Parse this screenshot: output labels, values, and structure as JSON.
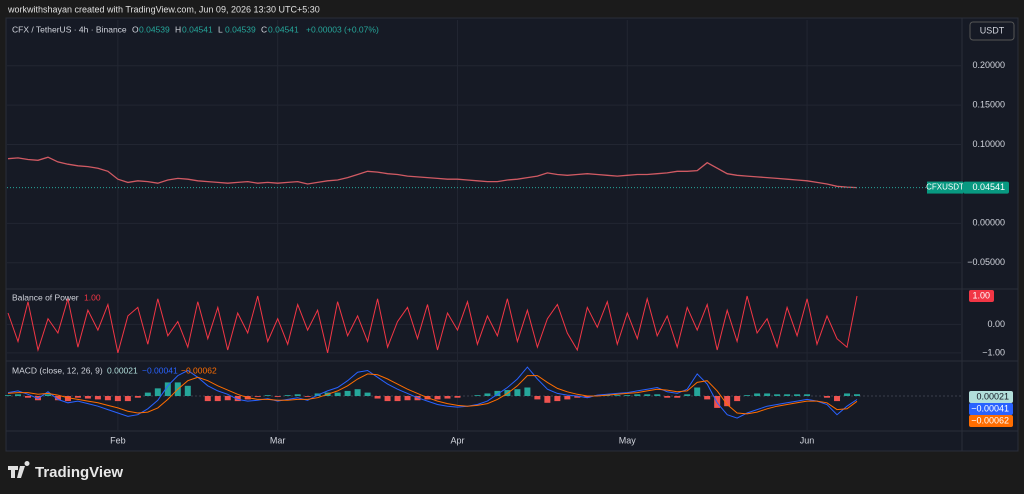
{
  "credit": "workwithshayan created with TradingView.com, Jun 09, 2026 13:30 UTC+5:30",
  "currency_button": "USDT",
  "footer_logo": "TradingView",
  "chart_data": [
    {
      "type": "line",
      "title": "CFX / TetherUS · 4h · Binance",
      "ohlc": [
        {
          "label": "O",
          "value": "0.04539"
        },
        {
          "label": "H",
          "value": "0.04541"
        },
        {
          "label": "L",
          "value": "0.04539"
        },
        {
          "label": "C",
          "value": "0.04541"
        }
      ],
      "change": "+0.00003 (+0.07%)",
      "symbol_label": "CFXUSDT",
      "last_label": "0.04541",
      "color": "#d05a63",
      "categories": [
        null,
        null,
        null,
        null,
        null,
        null,
        null,
        null,
        null,
        null,
        null,
        "Feb",
        null,
        null,
        null,
        null,
        null,
        null,
        null,
        null,
        null,
        null,
        null,
        null,
        null,
        null,
        null,
        "Mar",
        null,
        null,
        null,
        null,
        null,
        null,
        null,
        null,
        null,
        null,
        null,
        null,
        null,
        null,
        null,
        null,
        null,
        "Apr",
        null,
        null,
        null,
        null,
        null,
        null,
        null,
        null,
        null,
        null,
        null,
        null,
        null,
        null,
        null,
        null,
        "May",
        null,
        null,
        null,
        null,
        null,
        null,
        null,
        null,
        null,
        null,
        null,
        null,
        null,
        null,
        null,
        null,
        null,
        "Jun",
        null,
        null,
        null,
        null,
        null
      ],
      "values": [
        0.082,
        0.083,
        0.081,
        0.08,
        0.084,
        0.078,
        0.075,
        0.073,
        0.072,
        0.07,
        0.066,
        0.056,
        0.052,
        0.054,
        0.053,
        0.051,
        0.055,
        0.057,
        0.056,
        0.054,
        0.053,
        0.052,
        0.051,
        0.052,
        0.053,
        0.051,
        0.052,
        0.051,
        0.052,
        0.053,
        0.05,
        0.052,
        0.054,
        0.055,
        0.058,
        0.062,
        0.066,
        0.065,
        0.063,
        0.062,
        0.06,
        0.059,
        0.058,
        0.057,
        0.056,
        0.056,
        0.055,
        0.054,
        0.053,
        0.053,
        0.055,
        0.056,
        0.058,
        0.06,
        0.064,
        0.062,
        0.061,
        0.062,
        0.063,
        0.062,
        0.061,
        0.06,
        0.061,
        0.062,
        0.062,
        0.063,
        0.064,
        0.066,
        0.066,
        0.067,
        0.077,
        0.07,
        0.063,
        0.061,
        0.06,
        0.059,
        0.058,
        0.057,
        0.056,
        0.055,
        0.054,
        0.052,
        0.05,
        0.047,
        0.046,
        0.04541
      ],
      "ylim": [
        -0.082,
        0.258
      ],
      "yticks": [
        {
          "value": 0.2,
          "label": "0.20000"
        },
        {
          "value": 0.15,
          "label": "0.15000"
        },
        {
          "value": 0.1,
          "label": "0.10000"
        },
        {
          "value": 0,
          "label": "0.00000"
        },
        {
          "value": -0.05,
          "label": "−0.05000"
        }
      ],
      "grid": true
    },
    {
      "type": "line",
      "title": "Balance of Power",
      "last_label": "1.00",
      "color": "#f23645",
      "values": [
        0.4,
        -0.6,
        0.8,
        -0.9,
        0.2,
        -0.3,
        0.9,
        -0.8,
        0.5,
        -0.2,
        0.7,
        -1,
        0.3,
        0.6,
        -0.7,
        0.9,
        -0.4,
        0.1,
        -0.8,
        0.8,
        -0.5,
        0.6,
        -0.9,
        0.4,
        -0.3,
        1,
        -0.6,
        0.2,
        -0.7,
        0.7,
        -0.2,
        0.5,
        -1,
        0.8,
        -0.4,
        0.3,
        -0.6,
        0.9,
        -0.8,
        0.1,
        0.6,
        -0.5,
        0.7,
        -0.9,
        0.4,
        -0.2,
        0.8,
        -0.7,
        0.3,
        -0.4,
        0.9,
        -0.6,
        0.5,
        -0.8,
        0.2,
        0.7,
        -0.3,
        -0.9,
        0.6,
        -0.1,
        0.8,
        -0.7,
        0.4,
        -0.5,
        0.9,
        -0.4,
        0.3,
        -0.8,
        0.6,
        -0.2,
        0.7,
        -0.9,
        0.5,
        -0.6,
        1,
        -0.3,
        0.2,
        -0.8,
        0.6,
        -0.4,
        0.9,
        -0.7,
        0.3,
        -0.5,
        -0.8,
        1
      ],
      "ylim": [
        -1.25,
        1.21
      ],
      "yticks": [
        {
          "value": 0,
          "label": "0.00"
        },
        {
          "value": -1,
          "label": "−1.00"
        }
      ],
      "grid": true
    },
    {
      "type": "macd",
      "title": "MACD (close, 12, 26, 9)",
      "histogram": {
        "name": "0.00021",
        "up_color": "#26a69a",
        "down_color": "#ef5350",
        "values": [
          0.0001,
          0.0002,
          -0.0002,
          -0.0005,
          0.0002,
          -0.0005,
          -0.0006,
          -0.0002,
          -0.0003,
          -0.0004,
          -0.0005,
          -0.0006,
          -0.0006,
          -0.0002,
          0.0004,
          0.0009,
          0.0016,
          0.0016,
          0.0012,
          0,
          -0.0006,
          -0.0006,
          -0.0005,
          -0.0006,
          -0.0004,
          -0.0001,
          0.0001,
          -0.0001,
          0.0001,
          0.0002,
          -0.0001,
          0.0003,
          0.0004,
          0.0004,
          0.0006,
          0.0008,
          0.0004,
          -0.0003,
          -0.0006,
          -0.0006,
          -0.0005,
          -0.0005,
          -0.0004,
          -0.0004,
          -0.0003,
          -0.0002,
          0,
          0.0001,
          0.0003,
          0.0006,
          0.0007,
          0.0008,
          0.001,
          -0.0004,
          -0.0008,
          -0.0006,
          -0.0004,
          -0.0002,
          -0.0002,
          0.0001,
          0.0001,
          0.0001,
          0.0001,
          0.0002,
          0.0002,
          0.0002,
          -0.0002,
          -0.0002,
          0.0002,
          0.001,
          -0.0004,
          -0.0014,
          -0.0012,
          -0.0006,
          0.0001,
          0.0003,
          0.0003,
          0.0002,
          0.0002,
          0.0002,
          0.0002,
          0,
          -0.0002,
          -0.0006,
          0.0003,
          0.00021
        ]
      },
      "series": [
        {
          "name": "−0.00041",
          "color": "#2962ff",
          "values": [
            0.0004,
            0.0006,
            0.0002,
            -0.0003,
            0.0005,
            -0.0004,
            -0.0008,
            -0.0006,
            -0.0009,
            -0.0012,
            -0.0016,
            -0.002,
            -0.0024,
            -0.0022,
            -0.0015,
            -0.0005,
            0.0012,
            0.0024,
            0.003,
            0.0022,
            0.0012,
            0.0006,
            0.0002,
            -0.0004,
            -0.0006,
            -0.0005,
            -0.0003,
            -0.0006,
            -0.0004,
            -0.0002,
            -0.0005,
            0.0001,
            0.0006,
            0.001,
            0.0018,
            0.0028,
            0.003,
            0.0022,
            0.0014,
            0.0008,
            0.0003,
            -0.0002,
            -0.0006,
            -0.001,
            -0.0012,
            -0.0013,
            -0.0012,
            -0.001,
            -0.0006,
            0.0002,
            0.001,
            0.002,
            0.0034,
            0.002,
            0.0008,
            0.0003,
            0.0001,
            0.0,
            -0.0002,
            0.0001,
            0.0002,
            0.0003,
            0.0004,
            0.0006,
            0.0008,
            0.001,
            0.0005,
            0.0003,
            0.0008,
            0.0026,
            0.0014,
            -0.0008,
            -0.0022,
            -0.0026,
            -0.002,
            -0.0016,
            -0.0012,
            -0.001,
            -0.0008,
            -0.0006,
            -0.0004,
            -0.0006,
            -0.001,
            -0.0022,
            -0.0012,
            -0.00041
          ]
        },
        {
          "name": "−0.00062",
          "color": "#ff6d00",
          "values": [
            0.0003,
            0.0004,
            0.0004,
            0.0002,
            0.0003,
            0.0001,
            -0.0002,
            -0.0004,
            -0.0006,
            -0.0008,
            -0.0011,
            -0.0014,
            -0.0018,
            -0.002,
            -0.0019,
            -0.0014,
            -0.0004,
            0.0008,
            0.0018,
            0.0022,
            0.0018,
            0.0012,
            0.0007,
            0.0002,
            -0.0002,
            -0.0004,
            -0.0004,
            -0.0005,
            -0.0005,
            -0.0004,
            -0.0004,
            -0.0002,
            0.0002,
            0.0006,
            0.0012,
            0.002,
            0.0026,
            0.0025,
            0.002,
            0.0014,
            0.0008,
            0.0003,
            -0.0002,
            -0.0006,
            -0.0009,
            -0.0011,
            -0.0012,
            -0.0011,
            -0.0009,
            -0.0004,
            0.0003,
            0.0012,
            0.0024,
            0.0024,
            0.0016,
            0.0009,
            0.0005,
            0.0002,
            0.0,
            0.0,
            0.0001,
            0.0002,
            0.0003,
            0.0004,
            0.0006,
            0.0008,
            0.0007,
            0.0005,
            0.0006,
            0.0016,
            0.0018,
            0.0006,
            -0.001,
            -0.002,
            -0.0021,
            -0.0019,
            -0.0015,
            -0.0012,
            -0.001,
            -0.0008,
            -0.0006,
            -0.0006,
            -0.0008,
            -0.0016,
            -0.0015,
            -0.00062
          ]
        }
      ],
      "ylim": [
        -0.004,
        0.004
      ]
    }
  ]
}
